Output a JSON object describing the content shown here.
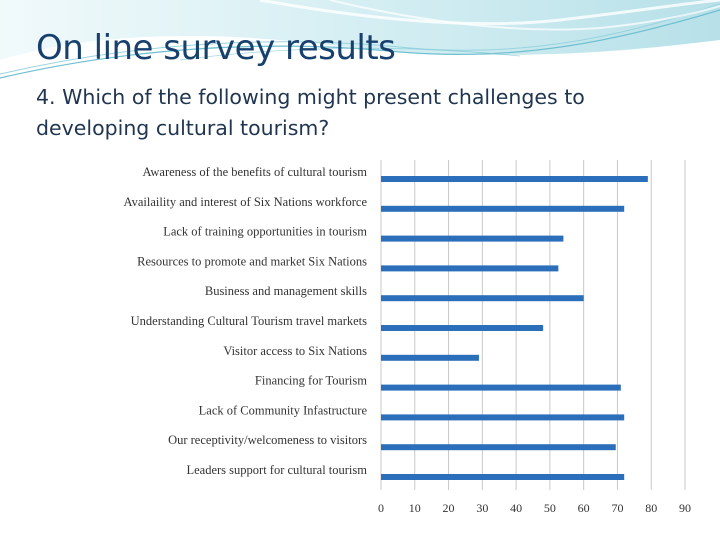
{
  "slide": {
    "title": "On line survey results",
    "subtitle": "4. Which of the following might present challenges to developing cultural tourism?"
  },
  "colors": {
    "bar": "#2b6fba",
    "grid": "#c8c8c8",
    "title": "#17406d",
    "wave": "#8fd0dd"
  },
  "chart_data": {
    "type": "bar",
    "orientation": "horizontal",
    "categories": [
      "Awareness of the benefits of cultural tourism",
      "Availaility  and interest of Six Nations workforce",
      "Lack of training opportunities in tourism",
      "Resources to promote and market Six Nations",
      "Business and management skills",
      "Understanding Cultural Tourism travel markets",
      "Visitor access to Six Nations",
      "Financing for Tourism",
      "Lack of Community Infastructure",
      "Our receptivity/welcomeness to visitors",
      "Leaders support for cultural tourism"
    ],
    "values": [
      79,
      72,
      54,
      52.5,
      60,
      48,
      29,
      71,
      72,
      69.5,
      72
    ],
    "xlim": [
      0,
      90
    ],
    "xticks": [
      0,
      10,
      20,
      30,
      40,
      50,
      60,
      70,
      80,
      90
    ],
    "grid": true,
    "title": "",
    "xlabel": "",
    "ylabel": ""
  }
}
